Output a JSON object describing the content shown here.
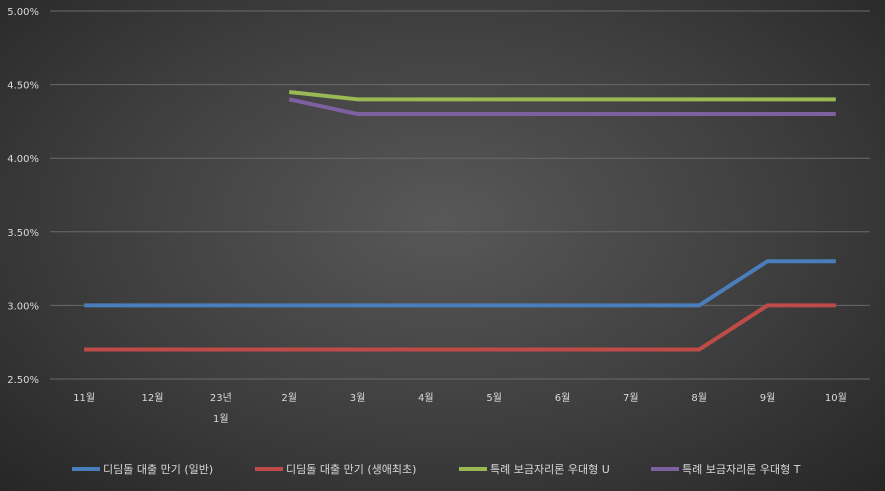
{
  "chart_data": {
    "type": "line",
    "categories": [
      "11월",
      "12월",
      "23년\n1월",
      "2월",
      "3월",
      "4월",
      "5월",
      "6월",
      "7월",
      "8월",
      "9월",
      "10월"
    ],
    "y_ticks": [
      "2.50%",
      "3.00%",
      "3.50%",
      "4.00%",
      "4.50%",
      "5.00%"
    ],
    "ylim": [
      2.5,
      5.0
    ],
    "grid": true,
    "legend_position": "bottom",
    "series": [
      {
        "name": "디딤돌 대출 만기 (일반)",
        "color": "#4a7ebb",
        "values": [
          3.0,
          3.0,
          3.0,
          3.0,
          3.0,
          3.0,
          3.0,
          3.0,
          3.0,
          3.0,
          3.3,
          3.3
        ]
      },
      {
        "name": "디딤돌 대출 만기 (생애최초)",
        "color": "#be4b48",
        "values": [
          2.7,
          2.7,
          2.7,
          2.7,
          2.7,
          2.7,
          2.7,
          2.7,
          2.7,
          2.7,
          3.0,
          3.0
        ]
      },
      {
        "name": "특례 보금자리론 우대형 U",
        "color": "#98b954",
        "values": [
          null,
          null,
          null,
          4.45,
          4.4,
          4.4,
          4.4,
          4.4,
          4.4,
          4.4,
          4.4,
          4.4
        ]
      },
      {
        "name": "특례 보금자리론 우대형 T",
        "color": "#7d60a0",
        "values": [
          null,
          null,
          null,
          4.4,
          4.3,
          4.3,
          4.3,
          4.3,
          4.3,
          4.3,
          4.3,
          4.3
        ]
      }
    ]
  }
}
